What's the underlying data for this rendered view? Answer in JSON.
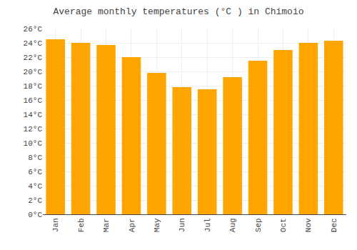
{
  "chart_data": {
    "type": "bar",
    "title": "Average monthly temperatures (°C ) in Chimoio",
    "categories": [
      "Jan",
      "Feb",
      "Mar",
      "Apr",
      "May",
      "Jun",
      "Jul",
      "Aug",
      "Sep",
      "Oct",
      "Nov",
      "Dec"
    ],
    "values": [
      24.5,
      24.0,
      23.7,
      22.0,
      19.8,
      17.8,
      17.5,
      19.2,
      21.5,
      23.0,
      24.0,
      24.3
    ],
    "color": "#FFA500",
    "ylim": [
      0,
      26
    ],
    "yticks": [
      {
        "value": 0,
        "label": "0°C"
      },
      {
        "value": 2,
        "label": "2°C"
      },
      {
        "value": 4,
        "label": "4°C"
      },
      {
        "value": 6,
        "label": "6°C"
      },
      {
        "value": 8,
        "label": "8°C"
      },
      {
        "value": 10,
        "label": "10°C"
      },
      {
        "value": 12,
        "label": "12°C"
      },
      {
        "value": 14,
        "label": "14°C"
      },
      {
        "value": 16,
        "label": "16°C"
      },
      {
        "value": 18,
        "label": "18°C"
      },
      {
        "value": 20,
        "label": "20°C"
      },
      {
        "value": 22,
        "label": "22°C"
      },
      {
        "value": 24,
        "label": "24°C"
      },
      {
        "value": 26,
        "label": "26°C"
      }
    ],
    "grid": true
  }
}
